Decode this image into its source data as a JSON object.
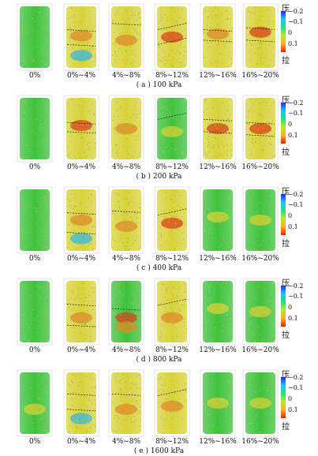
{
  "colors": {
    "green": "#3ec23c",
    "yellow": "#d8d23a",
    "orange": "#e08a2a",
    "red": "#d9421c",
    "cyan": "#35b8e0",
    "blue": "#2a4de0",
    "band_line": "#222222"
  },
  "strain_labels": [
    "0%",
    "0%~4%",
    "4%~8%",
    "8%~12%",
    "12%~16%",
    "16%~20%"
  ],
  "legend": {
    "top_label": "压",
    "bottom_label": "拉",
    "ticks": [
      "−0.2",
      "−0.1",
      "0",
      "0.1"
    ]
  },
  "panels": [
    {
      "caption": "( a ) 100 kPa",
      "specimens": [
        {
          "base": "green",
          "blobs": []
        },
        {
          "base": "yellow",
          "bands": [
            0.38,
            0.62
          ],
          "blobs": [
            {
              "c": "cyan",
              "y": 0.8
            },
            {
              "c": "orange",
              "y": 0.48
            }
          ]
        },
        {
          "base": "yellow",
          "bands": [
            0.28
          ],
          "blobs": [
            {
              "c": "orange",
              "y": 0.55
            }
          ]
        },
        {
          "base": "yellow",
          "bands": [
            0.38,
            0.62
          ],
          "blobs": [
            {
              "c": "red",
              "y": 0.5
            }
          ]
        },
        {
          "base": "yellow",
          "bands": [
            0.38,
            0.55
          ],
          "blobs": [
            {
              "c": "orange",
              "y": 0.45
            }
          ]
        },
        {
          "base": "yellow",
          "bands": [
            0.35,
            0.55
          ],
          "blobs": [
            {
              "c": "red",
              "y": 0.42
            }
          ]
        }
      ]
    },
    {
      "caption": "( b ) 200 kPa",
      "specimens": [
        {
          "base": "green",
          "blobs": []
        },
        {
          "base": "yellow",
          "bands": [
            0.4,
            0.55
          ],
          "blobs": [
            {
              "c": "red",
              "y": 0.45
            }
          ]
        },
        {
          "base": "yellow",
          "bands": [],
          "blobs": [
            {
              "c": "orange",
              "y": 0.5
            }
          ]
        },
        {
          "base": "green",
          "bands": [
            0.35
          ],
          "blobs": [
            {
              "c": "yellow",
              "y": 0.55
            }
          ]
        },
        {
          "base": "yellow",
          "bands": [
            0.35,
            0.55
          ],
          "blobs": [
            {
              "c": "red",
              "y": 0.5
            }
          ]
        },
        {
          "base": "yellow",
          "bands": [
            0.4,
            0.6
          ],
          "blobs": [
            {
              "c": "red",
              "y": 0.5
            }
          ]
        }
      ]
    },
    {
      "caption": "( c ) 400 kPa",
      "specimens": [
        {
          "base": "green",
          "blobs": []
        },
        {
          "base": "yellow",
          "bands": [
            0.38,
            0.7
          ],
          "blobs": [
            {
              "c": "cyan",
              "y": 0.8
            },
            {
              "c": "orange",
              "y": 0.5
            }
          ]
        },
        {
          "base": "yellow",
          "bands": [
            0.35
          ],
          "blobs": [
            {
              "c": "orange",
              "y": 0.6
            }
          ]
        },
        {
          "base": "yellow",
          "bands": [
            0.42
          ],
          "blobs": [
            {
              "c": "red",
              "y": 0.55
            }
          ]
        },
        {
          "base": "green",
          "bands": [],
          "blobs": [
            {
              "c": "yellow",
              "y": 0.45
            }
          ]
        },
        {
          "base": "green",
          "bands": [],
          "blobs": [
            {
              "c": "yellow",
              "y": 0.5
            }
          ]
        }
      ]
    },
    {
      "caption": "( d ) 800 kPa",
      "specimens": [
        {
          "base": "green",
          "blobs": []
        },
        {
          "base": "yellow",
          "bands": [
            0.38,
            0.72
          ],
          "blobs": [
            {
              "c": "orange",
              "y": 0.6
            }
          ]
        },
        {
          "base": "green",
          "bands": [
            0.45
          ],
          "blobs": [
            {
              "c": "red",
              "y": 0.6
            },
            {
              "c": "orange",
              "y": 0.75
            }
          ]
        },
        {
          "base": "yellow",
          "bands": [
            0.4
          ],
          "blobs": [
            {
              "c": "orange",
              "y": 0.6
            }
          ]
        },
        {
          "base": "green",
          "bands": [],
          "blobs": [
            {
              "c": "yellow",
              "y": 0.45
            }
          ]
        },
        {
          "base": "green",
          "bands": [],
          "blobs": [
            {
              "c": "yellow",
              "y": 0.5
            }
          ]
        }
      ]
    },
    {
      "caption": "( e ) 1600 kPa",
      "specimens": [
        {
          "base": "green",
          "blobs": [
            {
              "c": "yellow",
              "y": 0.6
            }
          ]
        },
        {
          "base": "yellow",
          "bands": [
            0.35,
            0.6
          ],
          "blobs": [
            {
              "c": "cyan",
              "y": 0.75
            }
          ]
        },
        {
          "base": "yellow",
          "bands": [
            0.35
          ],
          "blobs": [
            {
              "c": "orange",
              "y": 0.6
            }
          ]
        },
        {
          "base": "yellow",
          "bands": [
            0.38
          ],
          "blobs": [
            {
              "c": "orange",
              "y": 0.55
            }
          ]
        },
        {
          "base": "green",
          "bands": [],
          "blobs": [
            {
              "c": "yellow",
              "y": 0.5
            }
          ]
        },
        {
          "base": "green",
          "bands": [],
          "blobs": [
            {
              "c": "yellow",
              "y": 0.5
            }
          ]
        }
      ]
    }
  ]
}
